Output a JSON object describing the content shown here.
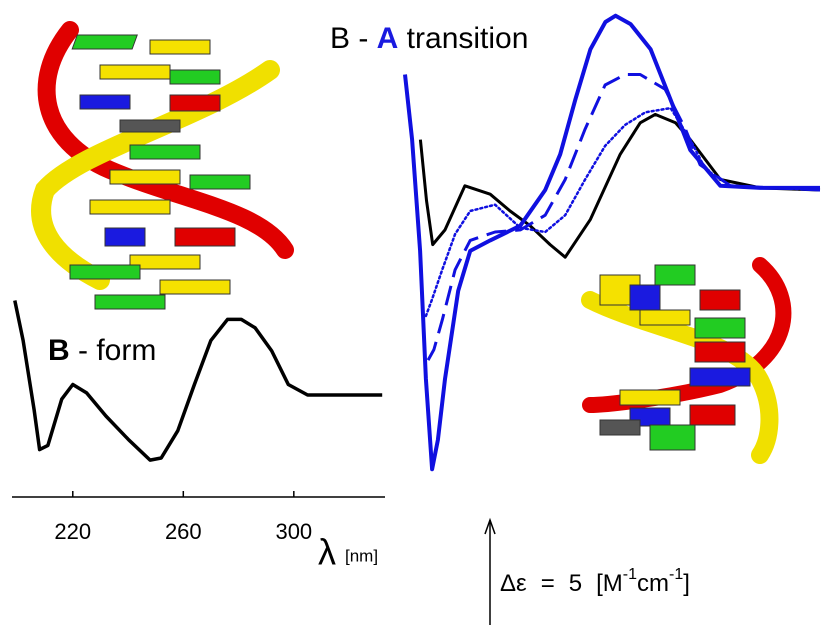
{
  "chart_data": [
    {
      "type": "line",
      "annotation": {
        "bold": "B",
        "text": " - form"
      },
      "xlabel": "λ",
      "xlabel_unit": "[nm]",
      "x": [
        199,
        202,
        206,
        208,
        211,
        216,
        220,
        225,
        232,
        240,
        248,
        252,
        258,
        264,
        270,
        276,
        281,
        286,
        292,
        298,
        305,
        315,
        332
      ],
      "values": [
        4.5,
        2.6,
        -0.7,
        -2.6,
        -2.4,
        -0.2,
        0.5,
        0.1,
        -1.0,
        -2.1,
        -3.1,
        -3.0,
        -1.7,
        0.5,
        2.6,
        3.6,
        3.6,
        3.2,
        2.1,
        0.5,
        0.0,
        0.0,
        0.0
      ],
      "color": "#000000",
      "xlim": [
        198,
        333
      ],
      "xticks": [
        220,
        260,
        300
      ],
      "ylim": [
        -4,
        5
      ]
    },
    {
      "type": "line",
      "title": {
        "before": "B - ",
        "highlight": "A",
        "after": " transition"
      },
      "xlim": [
        198,
        333
      ],
      "ylim": [
        -14,
        9
      ],
      "series": [
        {
          "color": "#000000",
          "style": "solid",
          "x": [
            203,
            205,
            207,
            211,
            217.5,
            225.7,
            232.2,
            238.7,
            245.2,
            250.1,
            258.3,
            268,
            274.5,
            279.4,
            286,
            290.8,
            300.6,
            313.6,
            333
          ],
          "values": [
            2.4,
            -0.5,
            -2.6,
            -1.9,
            0.2,
            -0.2,
            -1.0,
            -1.7,
            -2.6,
            -3.2,
            -1.4,
            1.7,
            3.2,
            3.6,
            3.2,
            2.4,
            0.5,
            0.1,
            0.0
          ]
        },
        {
          "color": "#1010e0",
          "style": "solid",
          "x": [
            198,
            200.3,
            202.9,
            204.8,
            206.8,
            208.7,
            211,
            215.3,
            219.2,
            225.7,
            235.5,
            243.6,
            248.5,
            253.4,
            258.3,
            263.2,
            266.5,
            271.4,
            277.9,
            284.4,
            290.8,
            300.6,
            313.6,
            333
          ],
          "values": [
            5.5,
            2.4,
            -2.9,
            -9.0,
            -13.3,
            -11.9,
            -9.0,
            -4.8,
            -2.9,
            -2.4,
            -1.7,
            0.0,
            1.7,
            4.3,
            6.7,
            8.0,
            8.3,
            7.9,
            6.7,
            4.3,
            1.9,
            0.2,
            0.1,
            0.1
          ]
        },
        {
          "color": "#1010e0",
          "style": "dashed",
          "x": [
            205.5,
            207.4,
            210.1,
            214.3,
            219.2,
            227.3,
            235.5,
            243.6,
            250.1,
            256.6,
            263.1,
            269.6,
            274.5,
            282.6,
            289.2,
            294,
            303.9,
            333
          ],
          "values": [
            -8.1,
            -7.6,
            -6.2,
            -3.8,
            -2.4,
            -2.0,
            -1.9,
            -1.2,
            0.5,
            2.9,
            5.0,
            5.5,
            5.5,
            4.8,
            2.9,
            1.2,
            0.2,
            0.0
          ]
        },
        {
          "color": "#1010e0",
          "style": "dotted",
          "x": [
            204.8,
            206.8,
            210.1,
            214.3,
            219.2,
            227.3,
            235.5,
            243.6,
            250.1,
            256.6,
            263.1,
            269.6,
            276.2,
            284.4,
            290.8,
            295.7,
            303.9,
            333
          ],
          "values": [
            -6.0,
            -5.2,
            -3.8,
            -2.1,
            -1.0,
            -0.7,
            -1.8,
            -2.0,
            -1.2,
            0.5,
            2.1,
            3.1,
            3.7,
            3.9,
            2.4,
            1.0,
            0.2,
            0.0
          ]
        }
      ],
      "scale_bar": {
        "symbol": "Δε",
        "equals": "=",
        "value": 5,
        "unit_open": "[M",
        "exp1": "-1",
        "unit_mid": "cm",
        "exp2": "-1",
        "unit_close": "]"
      }
    }
  ]
}
